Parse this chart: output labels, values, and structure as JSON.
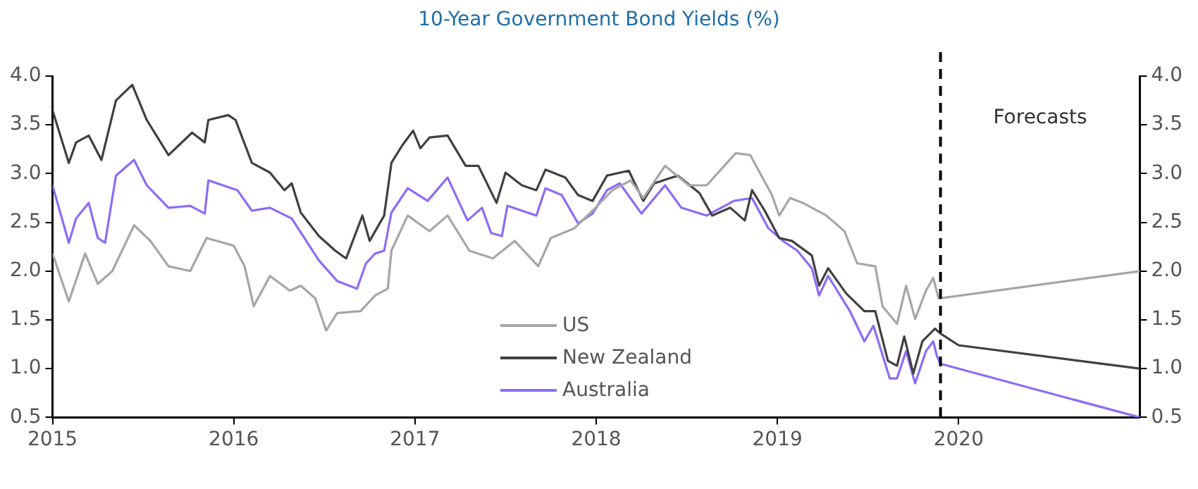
{
  "chart_data": {
    "type": "line",
    "title": "10-Year Government Bond Yields (%)",
    "xlim": [
      2015,
      2021
    ],
    "xticks": [
      2015,
      2016,
      2017,
      2018,
      2019,
      2020
    ],
    "ylim": [
      0.5,
      4
    ],
    "yticks": [
      {
        "value": 0.5,
        "label": "0.5"
      },
      {
        "value": 1,
        "label": "1.0"
      },
      {
        "value": 1.5,
        "label": "1.5"
      },
      {
        "value": 2,
        "label": "2.0"
      },
      {
        "value": 2.5,
        "label": "2.5"
      },
      {
        "value": 3,
        "label": "3.0"
      },
      {
        "value": 3.5,
        "label": "3.5"
      },
      {
        "value": 4,
        "label": "4.0"
      }
    ],
    "y2lim": [
      0.5,
      4
    ],
    "y2ticks": [
      {
        "value": 0.5,
        "label": "0.5"
      },
      {
        "value": 1,
        "label": "1.0"
      },
      {
        "value": 1.5,
        "label": "1.5"
      },
      {
        "value": 2,
        "label": "2.0"
      },
      {
        "value": 2.5,
        "label": "2.5"
      },
      {
        "value": 3,
        "label": "3.0"
      },
      {
        "value": 3.5,
        "label": "3.5"
      },
      {
        "value": 4,
        "label": "4.0"
      }
    ],
    "grid": false,
    "legend": "bottom",
    "marker": "none",
    "line_style": "solid",
    "ref_lines": [
      {
        "axis": "x",
        "value": 2019.9,
        "label": "Forecasts",
        "line_style": "dashed",
        "color": "#000000"
      }
    ],
    "series": [
      {
        "name": "US",
        "color": "#a6a6a6",
        "x": [
          2015.0,
          2015.09,
          2015.18,
          2015.25,
          2015.33,
          2015.45,
          2015.54,
          2015.64,
          2015.76,
          2015.85,
          2016.0,
          2016.06,
          2016.11,
          2016.2,
          2016.31,
          2016.37,
          2016.45,
          2016.51,
          2016.57,
          2016.7,
          2016.78,
          2016.85,
          2016.87,
          2016.96,
          2017.08,
          2017.18,
          2017.3,
          2017.43,
          2017.55,
          2017.68,
          2017.75,
          2017.88,
          2017.98,
          2018.09,
          2018.19,
          2018.26,
          2018.38,
          2018.51,
          2018.61,
          2018.77,
          2018.85,
          2018.97,
          2019.01,
          2019.07,
          2019.14,
          2019.27,
          2019.37,
          2019.44,
          2019.54,
          2019.58,
          2019.66,
          2019.71,
          2019.76,
          2019.82,
          2019.86,
          2019.89,
          2021
        ],
        "values": [
          2.18,
          1.69,
          2.18,
          1.87,
          2.0,
          2.47,
          2.31,
          2.05,
          2.0,
          2.34,
          2.26,
          2.05,
          1.64,
          1.95,
          1.8,
          1.85,
          1.72,
          1.39,
          1.57,
          1.59,
          1.75,
          1.82,
          2.21,
          2.57,
          2.41,
          2.57,
          2.21,
          2.13,
          2.31,
          2.05,
          2.34,
          2.44,
          2.62,
          2.83,
          2.93,
          2.75,
          3.08,
          2.88,
          2.88,
          3.21,
          3.19,
          2.78,
          2.57,
          2.75,
          2.7,
          2.57,
          2.41,
          2.08,
          2.05,
          1.64,
          1.46,
          1.85,
          1.51,
          1.8,
          1.93,
          1.72,
          2.0
        ]
      },
      {
        "name": "New Zealand",
        "color": "#404040",
        "x": [
          2015.0,
          2015.09,
          2015.13,
          2015.2,
          2015.27,
          2015.35,
          2015.44,
          2015.52,
          2015.64,
          2015.77,
          2015.84,
          2015.86,
          2015.97,
          2016.01,
          2016.1,
          2016.2,
          2016.28,
          2016.32,
          2016.37,
          2016.47,
          2016.56,
          2016.62,
          2016.71,
          2016.75,
          2016.83,
          2016.87,
          2016.93,
          2016.99,
          2017.03,
          2017.08,
          2017.18,
          2017.28,
          2017.35,
          2017.45,
          2017.5,
          2017.59,
          2017.67,
          2017.72,
          2017.83,
          2017.9,
          2017.98,
          2018.06,
          2018.18,
          2018.26,
          2018.32,
          2018.45,
          2018.57,
          2018.64,
          2018.74,
          2018.82,
          2018.86,
          2018.93,
          2019.01,
          2019.08,
          2019.19,
          2019.23,
          2019.28,
          2019.38,
          2019.48,
          2019.54,
          2019.61,
          2019.66,
          2019.7,
          2019.75,
          2019.8,
          2019.87,
          2019.9,
          2020.0,
          2021
        ],
        "values": [
          3.65,
          3.11,
          3.32,
          3.39,
          3.14,
          3.75,
          3.91,
          3.55,
          3.19,
          3.42,
          3.32,
          3.55,
          3.6,
          3.55,
          3.11,
          3.01,
          2.83,
          2.9,
          2.6,
          2.36,
          2.21,
          2.13,
          2.57,
          2.31,
          2.57,
          3.11,
          3.29,
          3.44,
          3.26,
          3.37,
          3.39,
          3.08,
          3.08,
          2.7,
          3.01,
          2.88,
          2.83,
          3.04,
          2.96,
          2.78,
          2.72,
          2.98,
          3.03,
          2.72,
          2.9,
          2.98,
          2.8,
          2.57,
          2.65,
          2.52,
          2.83,
          2.62,
          2.34,
          2.31,
          2.16,
          1.85,
          2.03,
          1.77,
          1.59,
          1.59,
          1.08,
          1.03,
          1.33,
          0.95,
          1.28,
          1.41,
          1.36,
          1.24,
          1.0
        ]
      },
      {
        "name": "Australia",
        "color": "#8c6cf7",
        "x": [
          2015.0,
          2015.09,
          2015.13,
          2015.2,
          2015.25,
          2015.29,
          2015.35,
          2015.45,
          2015.52,
          2015.64,
          2015.76,
          2015.84,
          2015.86,
          2016.02,
          2016.1,
          2016.2,
          2016.32,
          2016.47,
          2016.57,
          2016.68,
          2016.73,
          2016.78,
          2016.83,
          2016.87,
          2016.96,
          2017.07,
          2017.18,
          2017.29,
          2017.37,
          2017.42,
          2017.48,
          2017.51,
          2017.67,
          2017.72,
          2017.81,
          2017.9,
          2017.98,
          2018.06,
          2018.13,
          2018.25,
          2018.38,
          2018.47,
          2018.61,
          2018.76,
          2018.86,
          2018.95,
          2019.03,
          2019.11,
          2019.19,
          2019.23,
          2019.28,
          2019.4,
          2019.48,
          2019.53,
          2019.62,
          2019.66,
          2019.71,
          2019.76,
          2019.82,
          2019.86,
          2019.88,
          2019.9,
          2021
        ],
        "values": [
          2.88,
          2.29,
          2.54,
          2.7,
          2.34,
          2.29,
          2.98,
          3.14,
          2.88,
          2.65,
          2.67,
          2.59,
          2.93,
          2.83,
          2.62,
          2.65,
          2.54,
          2.11,
          1.9,
          1.82,
          2.08,
          2.18,
          2.21,
          2.6,
          2.85,
          2.72,
          2.96,
          2.52,
          2.65,
          2.39,
          2.36,
          2.67,
          2.57,
          2.85,
          2.78,
          2.49,
          2.59,
          2.83,
          2.9,
          2.59,
          2.88,
          2.65,
          2.57,
          2.72,
          2.75,
          2.44,
          2.31,
          2.21,
          2.03,
          1.75,
          1.95,
          1.59,
          1.28,
          1.44,
          0.9,
          0.9,
          1.18,
          0.85,
          1.18,
          1.28,
          1.13,
          1.05,
          0.5
        ]
      }
    ]
  }
}
